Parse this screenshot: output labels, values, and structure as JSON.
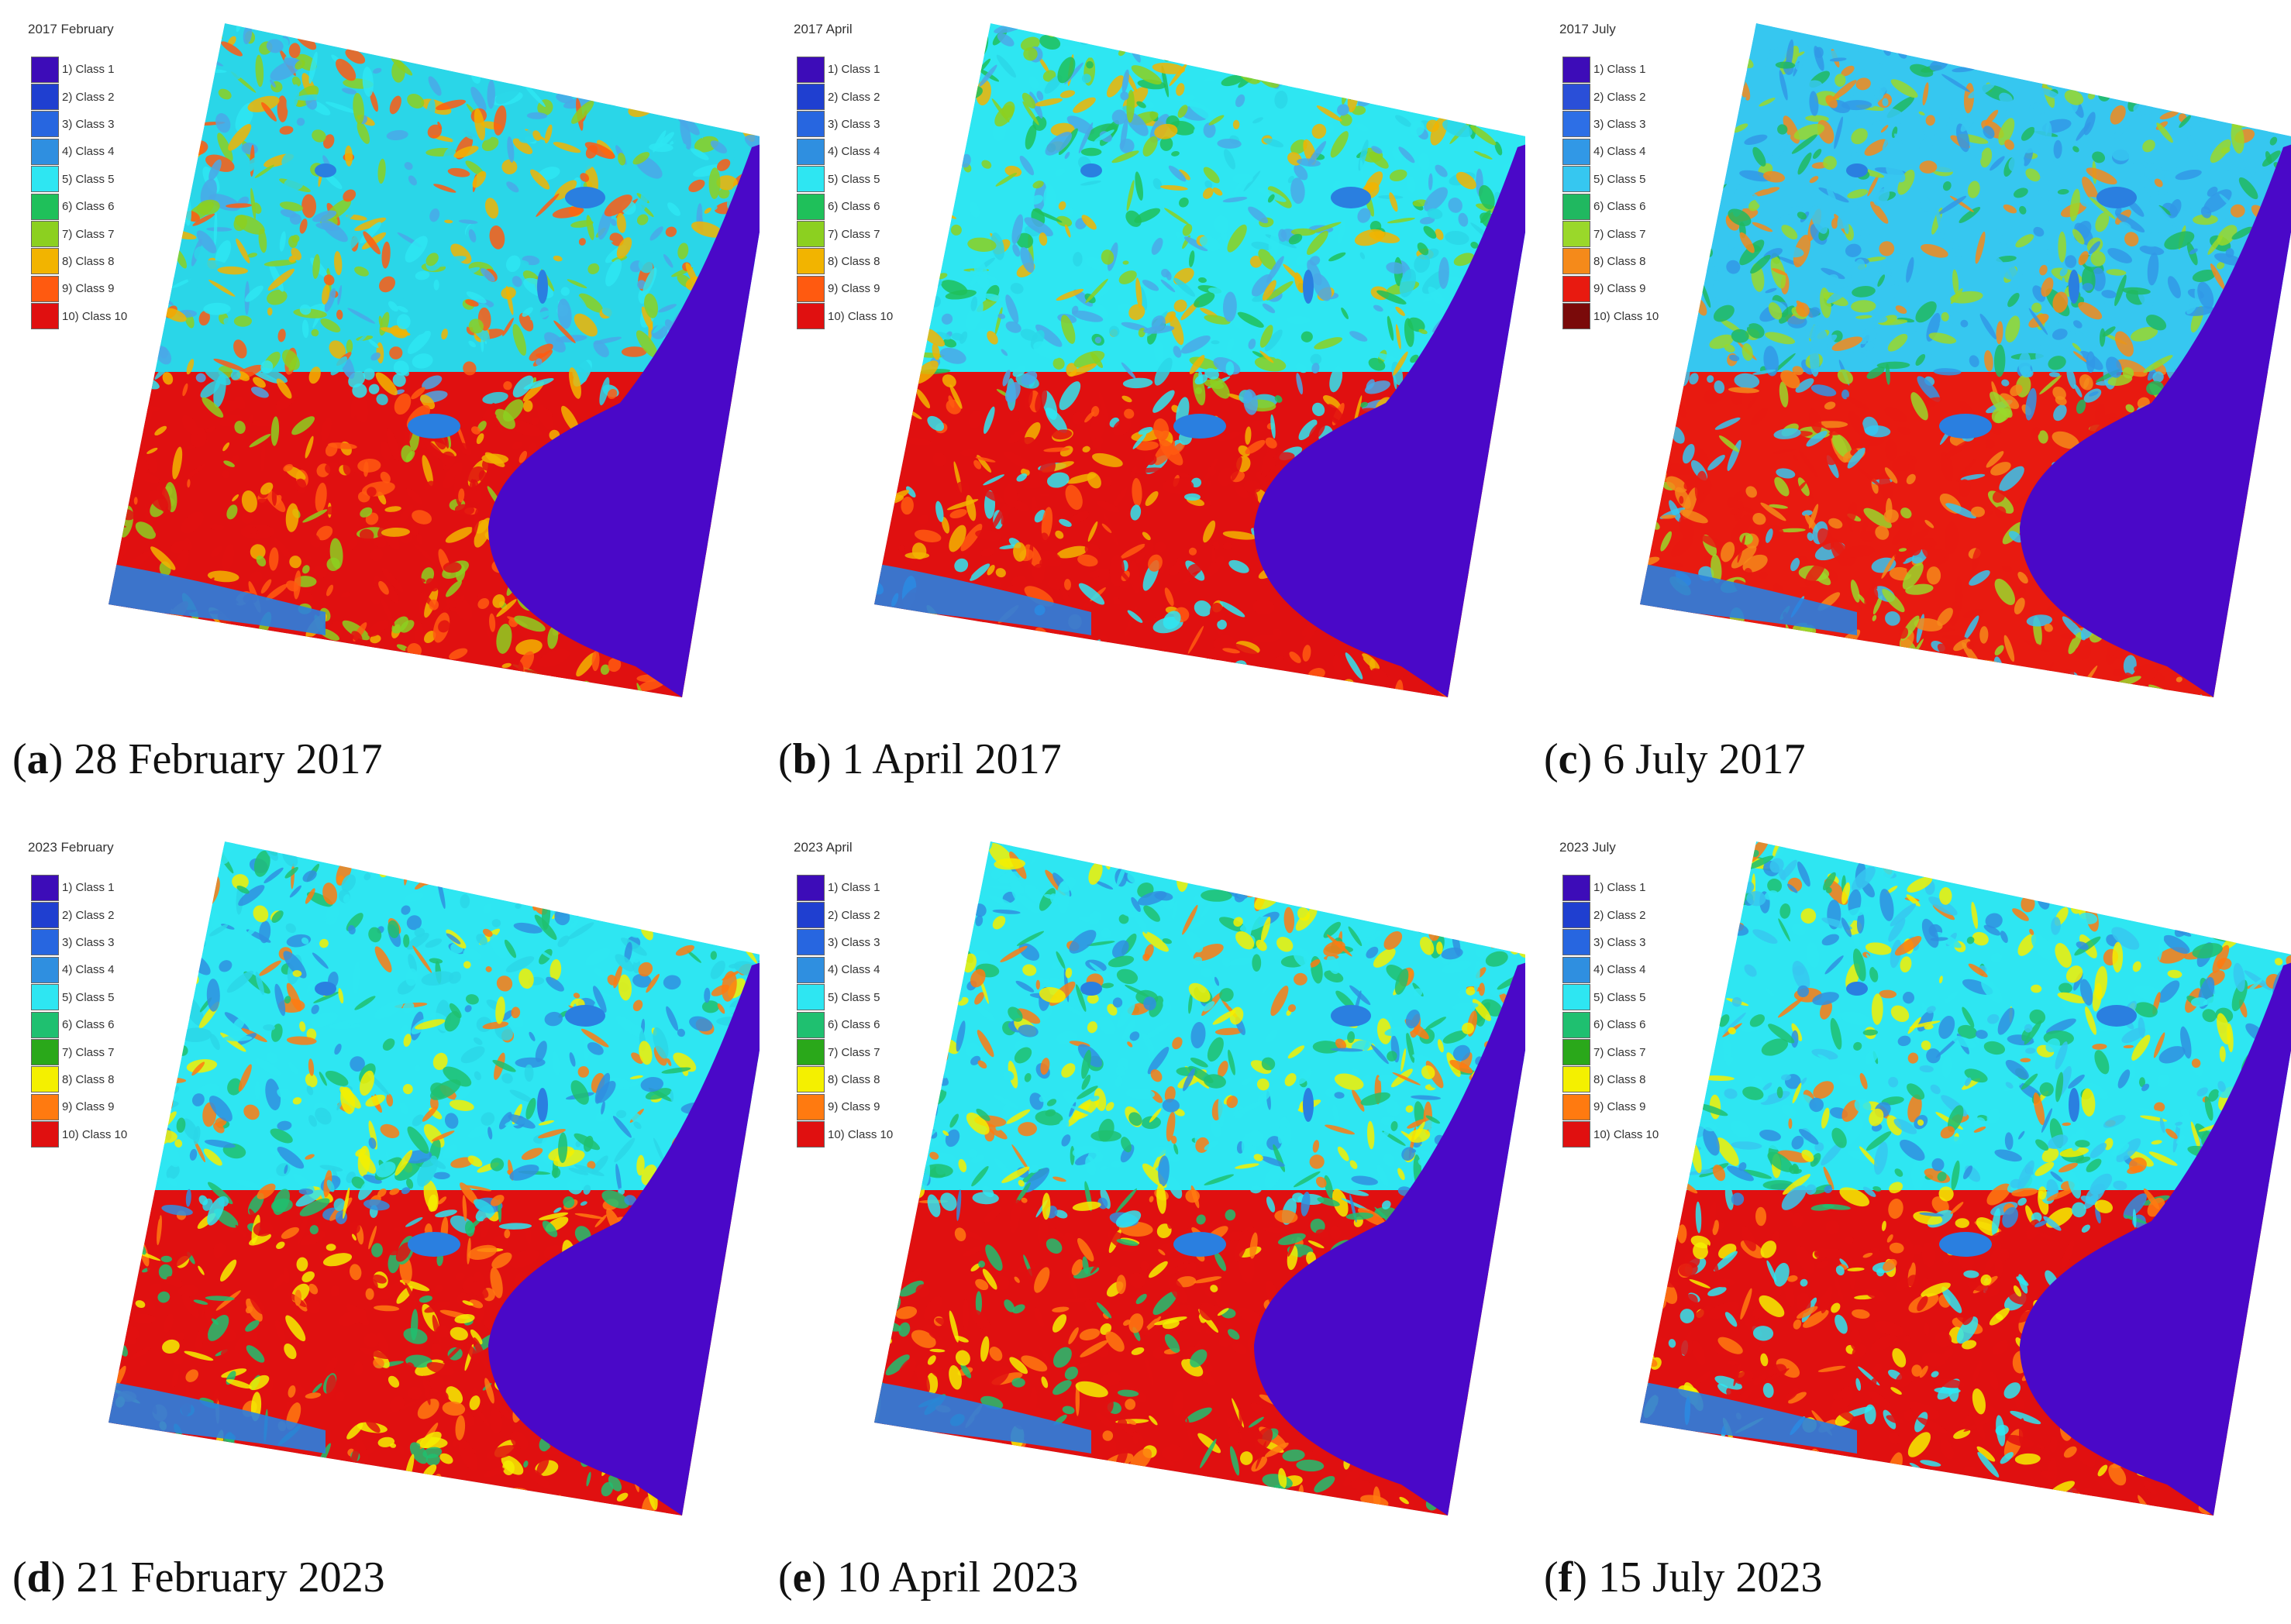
{
  "panels": [
    {
      "title": "2017 February",
      "letter": "a",
      "date": "28 February 2017",
      "variant": "feb",
      "seed": 11,
      "legend_variant": "v1",
      "legend": [
        "1) Class 1",
        "2) Class 2",
        "3) Class 3",
        "4) Class 4",
        "5) Class 5",
        "6) Class 6",
        "7) Class 7",
        "8) Class 8",
        "9) Class 9",
        "10) Class 10"
      ]
    },
    {
      "title": "2017 April",
      "letter": "b",
      "date": "1 April 2017",
      "variant": "apr",
      "seed": 23,
      "legend_variant": "v1",
      "legend": [
        "1) Class 1",
        "2) Class 2",
        "3) Class 3",
        "4) Class 4",
        "5) Class 5",
        "6) Class 6",
        "7) Class 7",
        "8) Class 8",
        "9) Class 9",
        "10) Class 10"
      ]
    },
    {
      "title": "2017 July",
      "letter": "c",
      "date": "6 July 2017",
      "variant": "jul17",
      "seed": 37,
      "legend_variant": "v2",
      "legend": [
        "1) Class 1",
        "2) Class 2",
        "3) Class 3",
        "4) Class 4",
        "5) Class 5",
        "6) Class 6",
        "7) Class 7",
        "8) Class 8",
        "9) Class 9",
        "10) Class 10"
      ]
    },
    {
      "title": "2023 February",
      "letter": "d",
      "date": "21 February 2023",
      "variant": "feb23",
      "seed": 41,
      "legend_variant": "v3",
      "legend": [
        "1) Class 1",
        "2) Class 2",
        "3) Class 3",
        "4) Class 4",
        "5) Class 5",
        "6) Class 6",
        "7) Class 7",
        "8) Class 8",
        "9) Class 9",
        "10) Class 10"
      ]
    },
    {
      "title": "2023 April",
      "letter": "e",
      "date": "10 April 2023",
      "variant": "apr23",
      "seed": 53,
      "legend_variant": "v3",
      "legend": [
        "1) Class 1",
        "2) Class 2",
        "3) Class 3",
        "4) Class 4",
        "5) Class 5",
        "6) Class 6",
        "7) Class 7",
        "8) Class 8",
        "9) Class 9",
        "10) Class 10"
      ]
    },
    {
      "title": "2023 July",
      "letter": "f",
      "date": "15 July 2023",
      "variant": "jul23",
      "seed": 67,
      "legend_variant": "v3",
      "legend": [
        "1) Class 1",
        "2) Class 2",
        "3) Class 3",
        "4) Class 4",
        "5) Class 5",
        "6) Class 6",
        "7) Class 7",
        "8) Class 8",
        "9) Class 9",
        "10) Class 10"
      ]
    }
  ],
  "legend_colors": {
    "v1": [
      "#3d0cb8",
      "#1f3fd0",
      "#2766e0",
      "#2f8fe0",
      "#2ee6f2",
      "#1fc05a",
      "#8cd020",
      "#f2b400",
      "#ff5a10",
      "#e01010"
    ],
    "v2": [
      "#3d0cb8",
      "#2a4fd8",
      "#2d6fe6",
      "#3198e6",
      "#36c7f0",
      "#20b860",
      "#9ad82a",
      "#f58a1a",
      "#e81a10",
      "#7a0a0a"
    ],
    "v3": [
      "#3d0cb8",
      "#1f3fd0",
      "#2766e0",
      "#2f8fe0",
      "#2ee6f2",
      "#1fc070",
      "#2aa81a",
      "#f4f000",
      "#ff7a10",
      "#e01010"
    ]
  },
  "colors": {
    "sea": "#4a08c8",
    "lake": "#2a7fe0"
  }
}
